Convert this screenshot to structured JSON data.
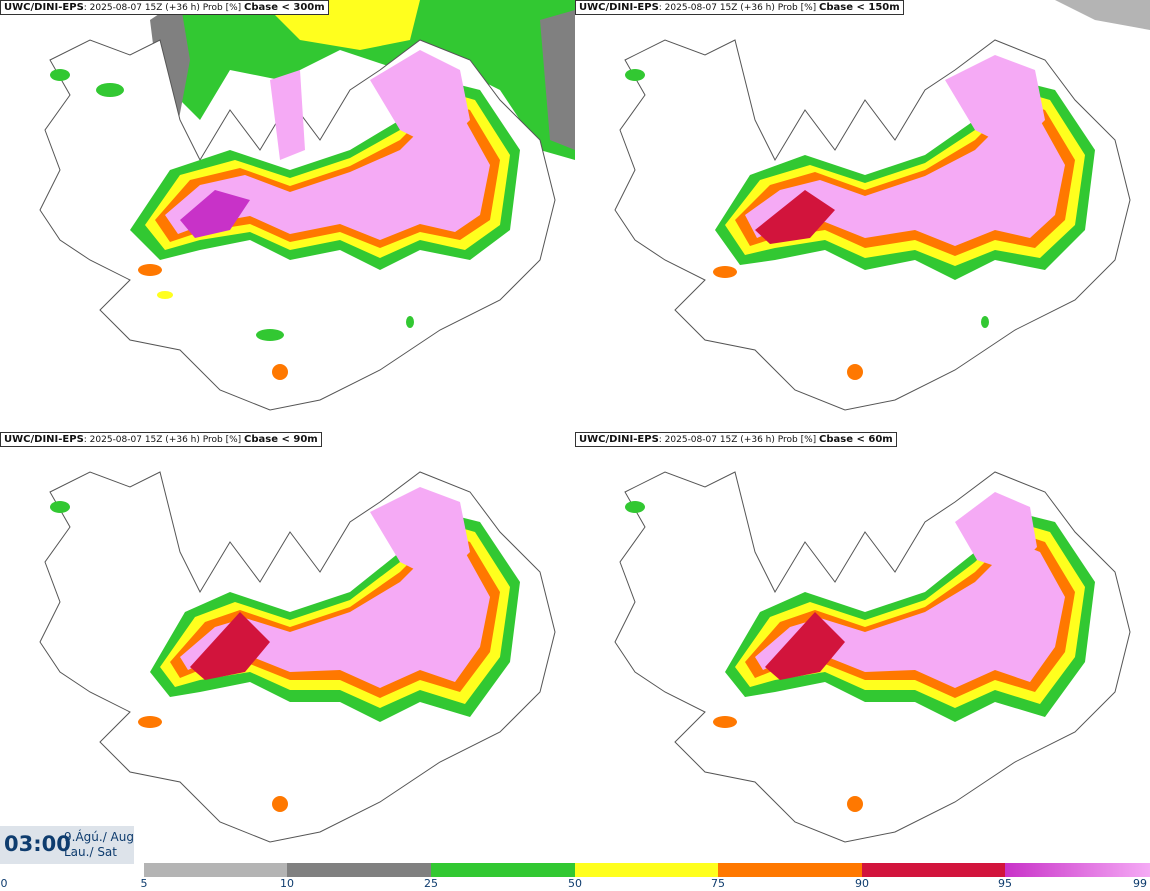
{
  "panels": [
    {
      "model": "UWC/DINI-EPS",
      "info": ": 2025-08-07 15Z (+36 h) Prob [%]",
      "threshold": "Cbase < 300m"
    },
    {
      "model": "UWC/DINI-EPS",
      "info": ": 2025-08-07 15Z (+36 h) Prob [%]",
      "threshold": "Cbase < 150m"
    },
    {
      "model": "UWC/DINI-EPS",
      "info": ": 2025-08-07 15Z (+36 h) Prob [%]",
      "threshold": "Cbase < 90m"
    },
    {
      "model": "UWC/DINI-EPS",
      "info": ": 2025-08-07 15Z (+36 h) Prob [%]",
      "threshold": "Cbase < 60m"
    }
  ],
  "valid_time": {
    "time": "03:00",
    "date": "9.Ágú./ Aug",
    "weekday": "Lau./ Sat"
  },
  "legend": {
    "ticks": [
      "0",
      "5",
      "10",
      "25",
      "50",
      "75",
      "90",
      "95",
      "99"
    ],
    "colors": [
      "#ffffff",
      "#b4b4b4",
      "#808080",
      "#32c832",
      "#ffff1e",
      "#ff7800",
      "#d2143c",
      "#c832c8",
      "#f5aaf5"
    ]
  },
  "map": {
    "region": "Iceland",
    "outline_color": "#555555",
    "ocean_color": "#ffffff"
  }
}
